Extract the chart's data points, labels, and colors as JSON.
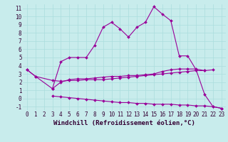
{
  "xlabel": "Windchill (Refroidissement éolien,°C)",
  "background_color": "#c8ecec",
  "grid_color": "#aadddd",
  "line_color": "#990099",
  "xlim": [
    -0.5,
    23.5
  ],
  "ylim": [
    -1.5,
    11.5
  ],
  "xticks": [
    0,
    1,
    2,
    3,
    4,
    5,
    6,
    7,
    8,
    9,
    10,
    11,
    12,
    13,
    14,
    15,
    16,
    17,
    18,
    19,
    20,
    21,
    22,
    23
  ],
  "yticks": [
    -1,
    0,
    1,
    2,
    3,
    4,
    5,
    6,
    7,
    8,
    9,
    10,
    11
  ],
  "series": {
    "line_top": {
      "x": [
        0,
        1,
        3,
        4,
        5,
        6,
        7,
        8,
        9,
        10,
        11,
        12,
        13,
        14,
        15,
        16,
        17,
        18,
        19,
        20,
        21,
        22
      ],
      "y": [
        3.5,
        2.7,
        2.2,
        2.1,
        2.2,
        2.2,
        2.3,
        2.3,
        2.3,
        2.4,
        2.5,
        2.6,
        2.7,
        2.8,
        2.9,
        3.0,
        3.1,
        3.2,
        3.3,
        3.4,
        3.4,
        3.5
      ]
    },
    "line_mid": {
      "x": [
        3,
        4,
        5,
        6,
        7,
        8,
        9,
        10,
        11,
        12,
        13,
        14,
        15,
        16,
        17,
        18,
        19,
        20,
        21
      ],
      "y": [
        1.2,
        2.0,
        2.3,
        2.4,
        2.4,
        2.5,
        2.6,
        2.7,
        2.7,
        2.8,
        2.8,
        2.9,
        3.0,
        3.3,
        3.5,
        3.6,
        3.6,
        3.6,
        3.4
      ]
    },
    "line_bot": {
      "x": [
        3,
        4,
        5,
        6,
        7,
        8,
        9,
        10,
        11,
        12,
        13,
        14,
        15,
        16,
        17,
        18,
        19,
        20,
        21,
        22,
        23
      ],
      "y": [
        0.3,
        0.2,
        0.1,
        0.0,
        -0.1,
        -0.2,
        -0.3,
        -0.4,
        -0.5,
        -0.5,
        -0.6,
        -0.6,
        -0.7,
        -0.7,
        -0.7,
        -0.8,
        -0.8,
        -0.9,
        -0.9,
        -1.0,
        -1.2
      ]
    },
    "line_main": {
      "x": [
        0,
        1,
        3,
        4,
        5,
        6,
        7,
        8,
        9,
        10,
        11,
        12,
        13,
        14,
        15,
        16,
        17,
        18,
        19,
        20,
        21,
        22,
        23
      ],
      "y": [
        3.5,
        2.7,
        1.2,
        4.5,
        5.0,
        5.0,
        5.0,
        6.5,
        8.7,
        9.3,
        8.5,
        7.5,
        8.7,
        9.3,
        11.2,
        10.3,
        9.5,
        5.2,
        5.2,
        3.5,
        0.5,
        -1.0,
        -1.2
      ]
    }
  },
  "marker": "D",
  "markersize": 2,
  "linewidth": 0.8,
  "tick_fontsize": 5.5,
  "label_fontsize": 6.5
}
